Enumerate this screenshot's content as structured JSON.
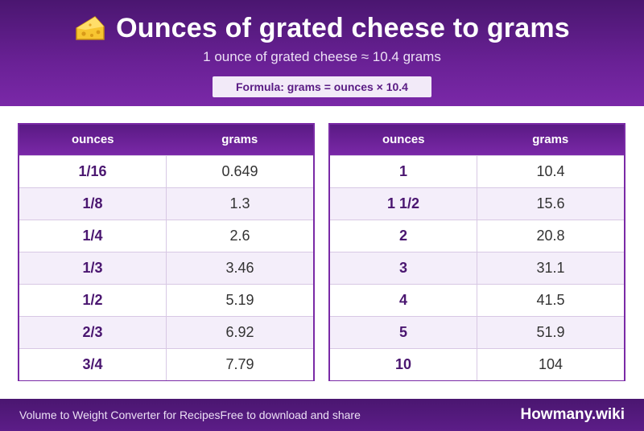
{
  "header": {
    "title": "Ounces of grated cheese to grams",
    "subtitle": "1 ounce of grated cheese ≈ 10.4 grams",
    "formula": "Formula: grams = ounces × 10.4",
    "icon": "cheese-icon"
  },
  "tables": [
    {
      "headers": {
        "ounces": "ounces",
        "grams": "grams"
      },
      "rows": [
        {
          "ounces": "1/16",
          "grams": "0.649"
        },
        {
          "ounces": "1/8",
          "grams": "1.3"
        },
        {
          "ounces": "1/4",
          "grams": "2.6"
        },
        {
          "ounces": "1/3",
          "grams": "3.46"
        },
        {
          "ounces": "1/2",
          "grams": "5.19"
        },
        {
          "ounces": "2/3",
          "grams": "6.92"
        },
        {
          "ounces": "3/4",
          "grams": "7.79"
        }
      ]
    },
    {
      "headers": {
        "ounces": "ounces",
        "grams": "grams"
      },
      "rows": [
        {
          "ounces": "1",
          "grams": "10.4"
        },
        {
          "ounces": "1 1/2",
          "grams": "15.6"
        },
        {
          "ounces": "2",
          "grams": "20.8"
        },
        {
          "ounces": "3",
          "grams": "31.1"
        },
        {
          "ounces": "4",
          "grams": "41.5"
        },
        {
          "ounces": "5",
          "grams": "51.9"
        },
        {
          "ounces": "10",
          "grams": "104"
        }
      ]
    }
  ],
  "footer": {
    "left_text": "Volume to Weight Converter for RecipesFree to download and share",
    "brand": "Howmany.wiki"
  },
  "colors": {
    "accent": "#6a2196",
    "header_dark": "#4a1670",
    "row_alt": "#f4eefa"
  }
}
